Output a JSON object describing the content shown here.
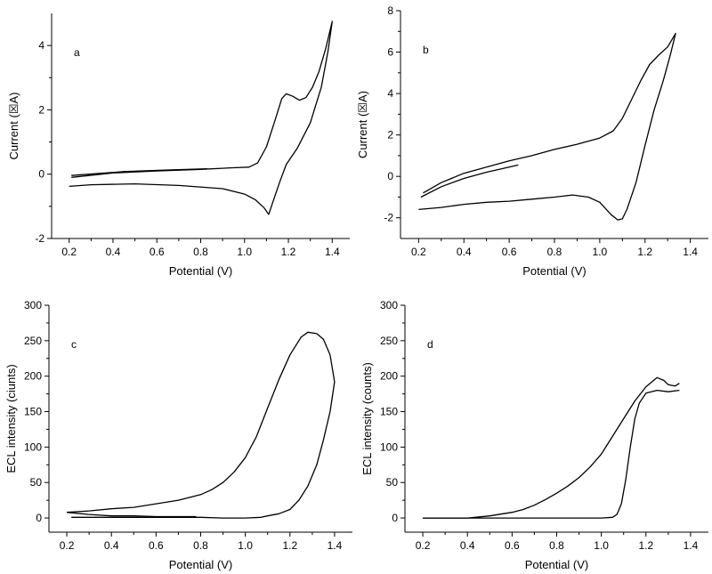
{
  "chart_data": [
    {
      "type": "line",
      "panel_label": "a",
      "xlabel": "Potential (V)",
      "ylabel": "Current (☒A)",
      "xlim": [
        0.12,
        1.48
      ],
      "ylim": [
        -2,
        5
      ],
      "xticks": [
        0.2,
        0.4,
        0.6,
        0.8,
        1.0,
        1.2,
        1.4
      ],
      "yticks": [
        -2,
        0,
        2,
        4
      ],
      "xtick_labels": [
        "0.2",
        "0.4",
        "0.6",
        "0.8",
        "1.0",
        "1.2",
        "1.4"
      ],
      "ytick_labels": [
        "-2",
        "0",
        "2",
        "4"
      ],
      "grid": false,
      "series": [
        {
          "points": [
            [
              0.21,
              -0.1
            ],
            [
              0.4,
              0.04
            ],
            [
              0.6,
              0.1
            ],
            [
              0.8,
              0.15
            ],
            [
              0.95,
              0.2
            ],
            [
              1.02,
              0.22
            ],
            [
              1.06,
              0.35
            ],
            [
              1.1,
              0.85
            ],
            [
              1.14,
              1.7
            ],
            [
              1.17,
              2.35
            ],
            [
              1.19,
              2.5
            ],
            [
              1.22,
              2.42
            ],
            [
              1.25,
              2.3
            ],
            [
              1.28,
              2.38
            ],
            [
              1.31,
              2.7
            ],
            [
              1.34,
              3.2
            ],
            [
              1.37,
              3.9
            ],
            [
              1.4,
              4.75
            ],
            [
              1.38,
              3.8
            ],
            [
              1.35,
              2.7
            ],
            [
              1.3,
              1.6
            ],
            [
              1.24,
              0.8
            ],
            [
              1.19,
              0.3
            ],
            [
              1.16,
              -0.25
            ],
            [
              1.13,
              -0.85
            ],
            [
              1.11,
              -1.25
            ],
            [
              1.09,
              -1.05
            ],
            [
              1.05,
              -0.8
            ],
            [
              1.0,
              -0.62
            ],
            [
              0.9,
              -0.45
            ],
            [
              0.7,
              -0.35
            ],
            [
              0.5,
              -0.3
            ],
            [
              0.3,
              -0.33
            ],
            [
              0.2,
              -0.38
            ]
          ]
        },
        {
          "points": [
            [
              0.21,
              -0.04
            ],
            [
              0.45,
              0.08
            ],
            [
              0.65,
              0.13
            ],
            [
              0.83,
              0.17
            ]
          ]
        }
      ]
    },
    {
      "type": "line",
      "panel_label": "b",
      "xlabel": "Potential (V)",
      "ylabel": "Current (☒A)",
      "xlim": [
        0.12,
        1.48
      ],
      "ylim": [
        -3,
        8
      ],
      "xticks": [
        0.2,
        0.4,
        0.6,
        0.8,
        1.0,
        1.2,
        1.4
      ],
      "yticks": [
        -2,
        0,
        2,
        4,
        6,
        8
      ],
      "xtick_labels": [
        "0.2",
        "0.4",
        "0.6",
        "0.8",
        "1.0",
        "1.2",
        "1.4"
      ],
      "ytick_labels": [
        "-2",
        "0",
        "2",
        "4",
        "6",
        "8"
      ],
      "grid": false,
      "series": [
        {
          "points": [
            [
              0.22,
              -0.8
            ],
            [
              0.3,
              -0.3
            ],
            [
              0.4,
              0.15
            ],
            [
              0.5,
              0.45
            ],
            [
              0.6,
              0.75
            ],
            [
              0.7,
              1.0
            ],
            [
              0.8,
              1.3
            ],
            [
              0.9,
              1.55
            ],
            [
              1.0,
              1.85
            ],
            [
              1.06,
              2.2
            ],
            [
              1.1,
              2.8
            ],
            [
              1.14,
              3.7
            ],
            [
              1.18,
              4.6
            ],
            [
              1.22,
              5.4
            ],
            [
              1.26,
              5.85
            ],
            [
              1.3,
              6.25
            ],
            [
              1.335,
              6.9
            ],
            [
              1.31,
              5.8
            ],
            [
              1.28,
              4.6
            ],
            [
              1.24,
              3.2
            ],
            [
              1.2,
              1.5
            ],
            [
              1.16,
              -0.3
            ],
            [
              1.12,
              -1.6
            ],
            [
              1.1,
              -2.05
            ],
            [
              1.08,
              -2.1
            ],
            [
              1.05,
              -1.85
            ],
            [
              1.0,
              -1.25
            ],
            [
              0.95,
              -1.0
            ],
            [
              0.88,
              -0.9
            ],
            [
              0.8,
              -1.0
            ],
            [
              0.7,
              -1.1
            ],
            [
              0.6,
              -1.2
            ],
            [
              0.5,
              -1.25
            ],
            [
              0.4,
              -1.35
            ],
            [
              0.3,
              -1.5
            ],
            [
              0.2,
              -1.6
            ]
          ]
        },
        {
          "points": [
            [
              0.21,
              -1.0
            ],
            [
              0.3,
              -0.5
            ],
            [
              0.4,
              -0.1
            ],
            [
              0.5,
              0.2
            ],
            [
              0.6,
              0.45
            ],
            [
              0.64,
              0.55
            ]
          ]
        }
      ]
    },
    {
      "type": "line",
      "panel_label": "c",
      "xlabel": "Potential (V)",
      "ylabel": "ECL intensity (ciunts)",
      "xlim": [
        0.12,
        1.48
      ],
      "ylim": [
        -20,
        300
      ],
      "xticks": [
        0.2,
        0.4,
        0.6,
        0.8,
        1.0,
        1.2,
        1.4
      ],
      "yticks": [
        0,
        50,
        100,
        150,
        200,
        250,
        300
      ],
      "xtick_labels": [
        "0.2",
        "0.4",
        "0.6",
        "0.8",
        "1.0",
        "1.2",
        "1.4"
      ],
      "ytick_labels": [
        "0",
        "50",
        "100",
        "150",
        "200",
        "250",
        "300"
      ],
      "grid": false,
      "series": [
        {
          "points": [
            [
              0.2,
              8
            ],
            [
              0.3,
              10
            ],
            [
              0.4,
              13
            ],
            [
              0.5,
              15
            ],
            [
              0.6,
              20
            ],
            [
              0.7,
              25
            ],
            [
              0.8,
              33
            ],
            [
              0.85,
              40
            ],
            [
              0.9,
              50
            ],
            [
              0.95,
              65
            ],
            [
              1.0,
              85
            ],
            [
              1.05,
              115
            ],
            [
              1.1,
              155
            ],
            [
              1.15,
              195
            ],
            [
              1.2,
              230
            ],
            [
              1.25,
              255
            ],
            [
              1.28,
              262
            ],
            [
              1.32,
              260
            ],
            [
              1.35,
              252
            ],
            [
              1.38,
              230
            ],
            [
              1.4,
              192
            ],
            [
              1.38,
              150
            ],
            [
              1.35,
              110
            ],
            [
              1.32,
              75
            ],
            [
              1.28,
              45
            ],
            [
              1.24,
              25
            ],
            [
              1.2,
              12
            ],
            [
              1.15,
              6
            ],
            [
              1.1,
              3
            ],
            [
              1.07,
              1
            ],
            [
              1.0,
              0
            ],
            [
              0.9,
              0
            ],
            [
              0.8,
              1
            ],
            [
              0.6,
              1
            ],
            [
              0.4,
              1
            ],
            [
              0.22,
              1
            ]
          ]
        },
        {
          "points": [
            [
              0.2,
              8
            ],
            [
              0.3,
              5
            ],
            [
              0.4,
              3
            ],
            [
              0.5,
              3
            ],
            [
              0.6,
              2
            ],
            [
              0.7,
              2
            ],
            [
              0.78,
              2
            ]
          ]
        }
      ]
    },
    {
      "type": "line",
      "panel_label": "d",
      "xlabel": "Potential (V)",
      "ylabel": "ECL intensity (counts)",
      "xlim": [
        0.12,
        1.48
      ],
      "ylim": [
        -20,
        300
      ],
      "xticks": [
        0.2,
        0.4,
        0.6,
        0.8,
        1.0,
        1.2,
        1.4
      ],
      "yticks": [
        0,
        50,
        100,
        150,
        200,
        250,
        300
      ],
      "xtick_labels": [
        "0.2",
        "0.4",
        "0.6",
        "0.8",
        "1.0",
        "1.2",
        "1.4"
      ],
      "ytick_labels": [
        "0",
        "50",
        "100",
        "150",
        "200",
        "250",
        "300"
      ],
      "grid": false,
      "series": [
        {
          "points": [
            [
              0.2,
              0
            ],
            [
              0.3,
              0
            ],
            [
              0.4,
              0
            ],
            [
              0.5,
              3
            ],
            [
              0.6,
              8
            ],
            [
              0.65,
              12
            ],
            [
              0.7,
              18
            ],
            [
              0.75,
              26
            ],
            [
              0.8,
              35
            ],
            [
              0.85,
              45
            ],
            [
              0.9,
              57
            ],
            [
              0.95,
              72
            ],
            [
              1.0,
              90
            ],
            [
              1.05,
              115
            ],
            [
              1.1,
              140
            ],
            [
              1.15,
              165
            ],
            [
              1.2,
              185
            ],
            [
              1.25,
              198
            ],
            [
              1.28,
              194
            ],
            [
              1.3,
              188
            ],
            [
              1.33,
              186
            ],
            [
              1.35,
              190
            ]
          ]
        },
        {
          "points": [
            [
              0.2,
              0
            ],
            [
              0.4,
              0
            ],
            [
              0.6,
              0
            ],
            [
              0.8,
              0
            ],
            [
              1.0,
              0
            ],
            [
              1.05,
              1
            ],
            [
              1.07,
              5
            ],
            [
              1.09,
              20
            ],
            [
              1.11,
              55
            ],
            [
              1.13,
              100
            ],
            [
              1.15,
              140
            ],
            [
              1.17,
              162
            ],
            [
              1.2,
              176
            ],
            [
              1.25,
              180
            ],
            [
              1.3,
              178
            ],
            [
              1.35,
              180
            ]
          ]
        }
      ]
    }
  ]
}
